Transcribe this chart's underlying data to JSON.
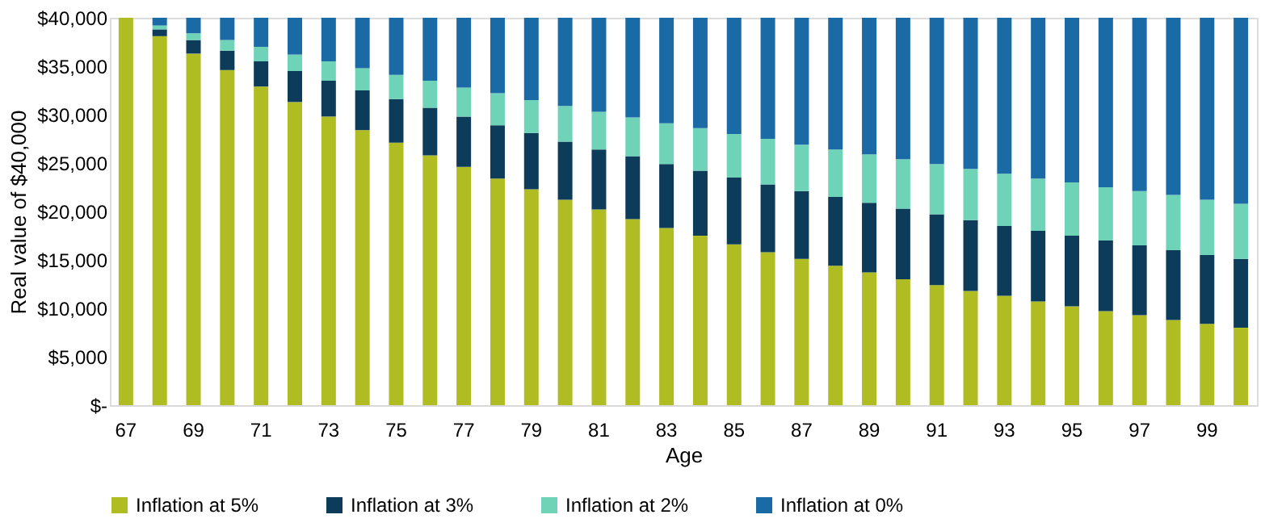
{
  "chart_data": {
    "type": "bar",
    "stacked": true,
    "xlabel": "Age",
    "ylabel": "Real value of $40,000",
    "categories": [
      "67",
      null,
      "69",
      null,
      "71",
      null,
      "73",
      null,
      "75",
      null,
      "77",
      null,
      "79",
      null,
      "81",
      null,
      "83",
      null,
      "85",
      null,
      "87",
      null,
      "89",
      null,
      "91",
      null,
      "93",
      null,
      "95",
      null,
      "97",
      null,
      "99",
      null
    ],
    "series": [
      {
        "name": "Inflation at 5%",
        "color": "#afbd22",
        "values": [
          40000,
          38100,
          36300,
          34600,
          32900,
          31300,
          29800,
          28400,
          27100,
          25800,
          24600,
          23400,
          22300,
          21200,
          20200,
          19200,
          18300,
          17500,
          16600,
          15800,
          15100,
          14400,
          13700,
          13000,
          12400,
          11800,
          11300,
          10700,
          10200,
          9700,
          9300,
          8800,
          8400,
          8000
        ]
      },
      {
        "name": "Inflation at 3%",
        "color": "#0d3b5a",
        "values": [
          0,
          700,
          1400,
          2000,
          2600,
          3200,
          3700,
          4100,
          4500,
          4900,
          5200,
          5500,
          5800,
          6000,
          6200,
          6500,
          6600,
          6700,
          6900,
          7000,
          7000,
          7100,
          7200,
          7300,
          7300,
          7300,
          7200,
          7300,
          7300,
          7300,
          7200,
          7200,
          7100,
          7100
        ]
      },
      {
        "name": "Inflation at 2%",
        "color": "#6fd3b7",
        "values": [
          0,
          400,
          700,
          1100,
          1500,
          1700,
          2000,
          2300,
          2500,
          2800,
          3000,
          3300,
          3400,
          3700,
          3900,
          4000,
          4200,
          4400,
          4500,
          4700,
          4800,
          4900,
          5000,
          5100,
          5200,
          5300,
          5400,
          5400,
          5500,
          5500,
          5600,
          5700,
          5700,
          5700
        ]
      },
      {
        "name": "Inflation at 0%",
        "color": "#1a6aa5",
        "values": [
          0,
          800,
          1600,
          2300,
          3000,
          3800,
          4500,
          5200,
          5900,
          6500,
          7200,
          7800,
          8500,
          9100,
          9700,
          10300,
          10900,
          11400,
          12000,
          12500,
          13100,
          13600,
          14100,
          14600,
          15100,
          15600,
          16100,
          16600,
          17000,
          17500,
          17900,
          18300,
          18800,
          19200
        ]
      }
    ],
    "ylim": [
      0,
      40000
    ],
    "yticks": [
      {
        "value": 0,
        "label": "$-"
      },
      {
        "value": 5000,
        "label": "$5,000"
      },
      {
        "value": 10000,
        "label": "$10,000"
      },
      {
        "value": 15000,
        "label": "$15,000"
      },
      {
        "value": 20000,
        "label": "$20,000"
      },
      {
        "value": 25000,
        "label": "$25,000"
      },
      {
        "value": 30000,
        "label": "$30,000"
      },
      {
        "value": 35000,
        "label": "$35,000"
      },
      {
        "value": 40000,
        "label": "$40,000"
      }
    ],
    "grid": false,
    "legend": "bottom"
  }
}
